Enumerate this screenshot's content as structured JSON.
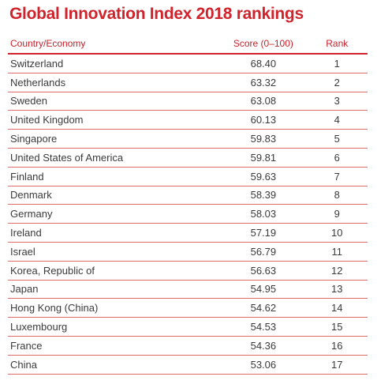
{
  "title": "Global Innovation Index 2018 rankings",
  "colors": {
    "accent": "#d0232b",
    "row_divider": "#e06b6f",
    "text": "#3a3a3a"
  },
  "table": {
    "headers": {
      "country": "Country/Economy",
      "score": "Score (0–100)",
      "rank": "Rank"
    },
    "rows": [
      {
        "country": "Switzerland",
        "score": "68.40",
        "rank": "1"
      },
      {
        "country": "Netherlands",
        "score": "63.32",
        "rank": "2"
      },
      {
        "country": "Sweden",
        "score": "63.08",
        "rank": "3"
      },
      {
        "country": "United Kingdom",
        "score": "60.13",
        "rank": "4"
      },
      {
        "country": "Singapore",
        "score": "59.83",
        "rank": "5"
      },
      {
        "country": "United States of America",
        "score": "59.81",
        "rank": "6"
      },
      {
        "country": "Finland",
        "score": "59.63",
        "rank": "7"
      },
      {
        "country": "Denmark",
        "score": "58.39",
        "rank": "8"
      },
      {
        "country": "Germany",
        "score": "58.03",
        "rank": "9"
      },
      {
        "country": "Ireland",
        "score": "57.19",
        "rank": "10"
      },
      {
        "country": "Israel",
        "score": "56.79",
        "rank": "11"
      },
      {
        "country": "Korea, Republic of",
        "score": "56.63",
        "rank": "12"
      },
      {
        "country": "Japan",
        "score": "54.95",
        "rank": "13"
      },
      {
        "country": "Hong Kong (China)",
        "score": "54.62",
        "rank": "14"
      },
      {
        "country": "Luxembourg",
        "score": "54.53",
        "rank": "15"
      },
      {
        "country": "France",
        "score": "54.36",
        "rank": "16"
      },
      {
        "country": "China",
        "score": "53.06",
        "rank": "17"
      }
    ]
  }
}
